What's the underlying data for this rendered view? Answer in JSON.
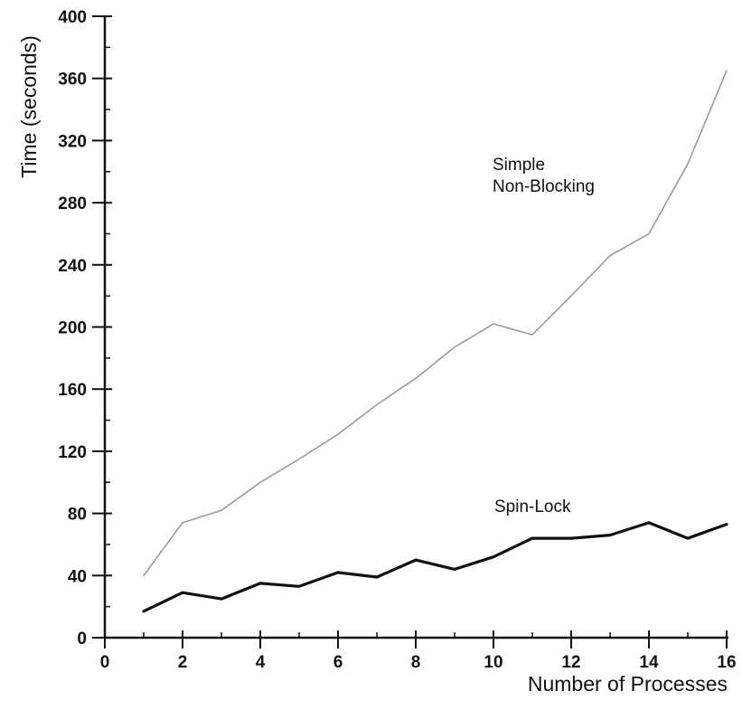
{
  "chart_data": {
    "type": "line",
    "title": "",
    "xlabel": "Number of Processes",
    "ylabel": "Time (seconds)",
    "xlim": [
      0,
      16
    ],
    "ylim": [
      0,
      400
    ],
    "x_ticks": [
      "0",
      "2",
      "4",
      "6",
      "8",
      "10",
      "12",
      "14",
      "16"
    ],
    "y_ticks": [
      "0",
      "40",
      "80",
      "120",
      "160",
      "200",
      "240",
      "280",
      "320",
      "360",
      "400"
    ],
    "grid": false,
    "legend": "none",
    "series": [
      {
        "name": "Simple Non-Blocking",
        "label_lines": [
          "Simple",
          "Non-Blocking"
        ],
        "color": "#9a9a9a",
        "x": [
          1,
          2,
          3,
          4,
          5,
          6,
          7,
          8,
          9,
          10,
          11,
          12,
          13,
          14,
          15,
          16
        ],
        "values": [
          40,
          74,
          82,
          100,
          115,
          131,
          150,
          167,
          187,
          202,
          195,
          220,
          246,
          260,
          305,
          365
        ]
      },
      {
        "name": "Spin-Lock",
        "label_lines": [
          "Spin-Lock"
        ],
        "color": "#111111",
        "x": [
          1,
          2,
          3,
          4,
          5,
          6,
          7,
          8,
          9,
          10,
          11,
          12,
          13,
          14,
          15,
          16
        ],
        "values": [
          17,
          29,
          25,
          35,
          33,
          42,
          39,
          50,
          44,
          52,
          64,
          64,
          66,
          74,
          64,
          73
        ]
      }
    ]
  }
}
